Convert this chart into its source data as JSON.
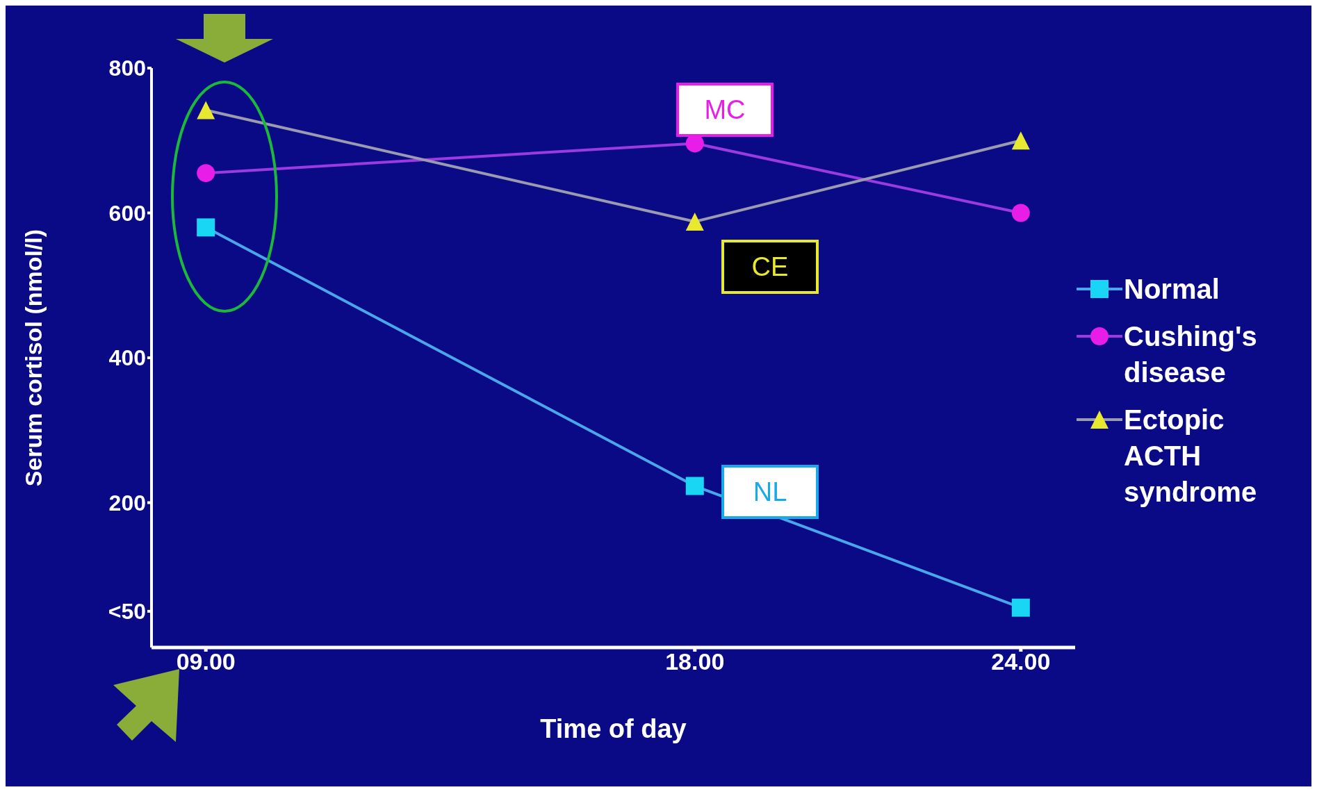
{
  "chart_data": {
    "type": "line",
    "xlabel": "Time of day",
    "ylabel": "Serum cortisol (nmol/l)",
    "xlim": [
      8,
      25
    ],
    "xticks": [
      {
        "value": 9,
        "label": "09.00"
      },
      {
        "value": 18,
        "label": "18.00"
      },
      {
        "value": 24,
        "label": "24.00"
      }
    ],
    "ylim": [
      0,
      800
    ],
    "yticks": [
      {
        "value": 50,
        "label": "<50"
      },
      200,
      400,
      600,
      800
    ],
    "x": [
      9,
      18,
      24
    ],
    "series": [
      {
        "name": "Normal",
        "color": "#19d6f5",
        "values": [
          580,
          223,
          55
        ],
        "marker": "square"
      },
      {
        "name": "Cushing's disease",
        "color": "#e81ee8",
        "values": [
          655,
          696,
          600
        ],
        "marker": "circle"
      },
      {
        "name": "Ectopic ACTH syndrome",
        "color": "#e8e830",
        "values": [
          742,
          588,
          700
        ],
        "marker": "triangle"
      }
    ],
    "annotations": [
      "MC",
      "CE",
      "NL"
    ],
    "legend": "right",
    "grid": false
  }
}
